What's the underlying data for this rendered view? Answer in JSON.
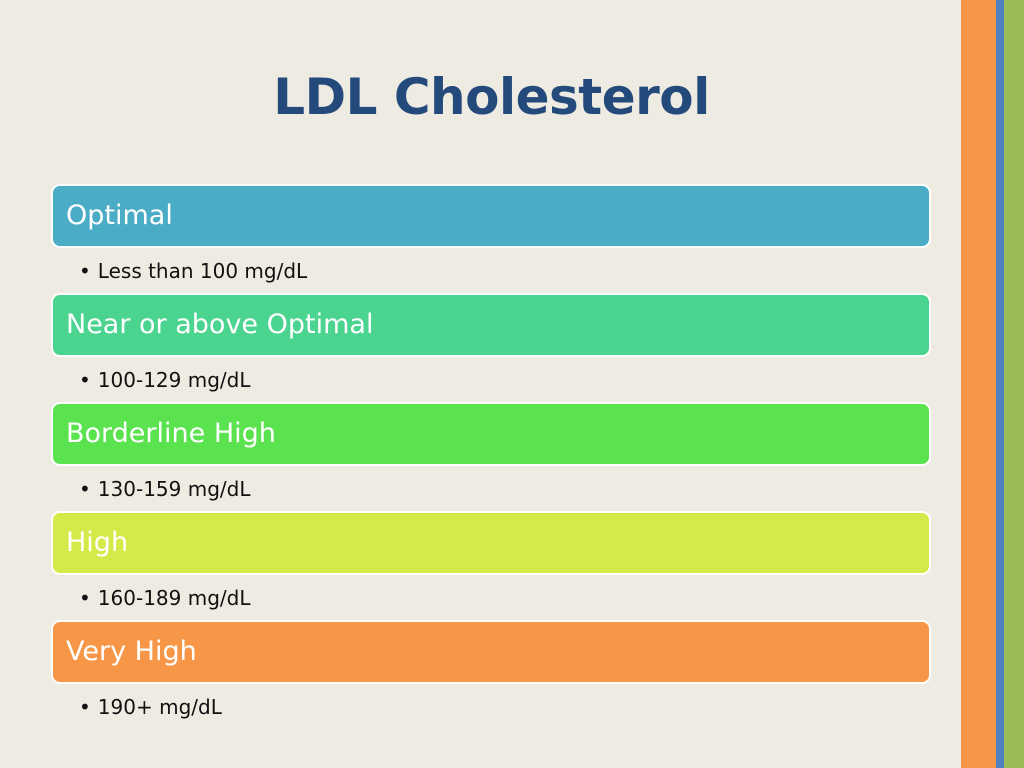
{
  "slide": {
    "title": "LDL Cholesterol",
    "background": "#eeebe2",
    "title_color": "#244a7c",
    "sidebar_colors": {
      "orange": "#f79646",
      "blue": "#4f81bd",
      "green": "#9bbb59"
    }
  },
  "categories": [
    {
      "label": "Optimal",
      "range": "Less than 100 mg/dL",
      "color": "#4bacc6"
    },
    {
      "label": "Near or above Optimal",
      "range": "100-129 mg/dL",
      "color": "#4ad48f"
    },
    {
      "label": "Borderline High",
      "range": "130-159 mg/dL",
      "color": "#5ae24f"
    },
    {
      "label": "High",
      "range": "160-189 mg/dL",
      "color": "#d4ea48"
    },
    {
      "label": "Very High",
      "range": "190+ mg/dL",
      "color": "#f79646"
    }
  ],
  "bullet_glyph": "•"
}
